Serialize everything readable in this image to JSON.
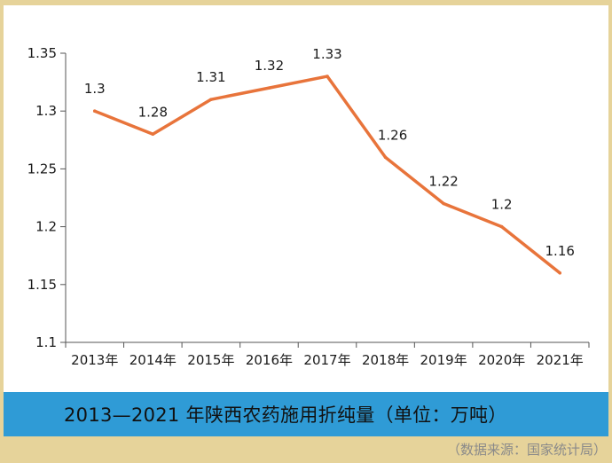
{
  "chart_data": {
    "type": "line",
    "title": "2013—2021 年陕西农药施用折纯量（单位：万吨）",
    "source": "（数据来源：国家统计局）",
    "categories": [
      "2013年",
      "2014年",
      "2015年",
      "2016年",
      "2017年",
      "2018年",
      "2019年",
      "2020年",
      "2021年"
    ],
    "series": [
      {
        "values": [
          1.3,
          1.28,
          1.31,
          1.32,
          1.33,
          1.26,
          1.22,
          1.2,
          1.16
        ],
        "labels": [
          "1.3",
          "1.28",
          "1.31",
          "1.32",
          "1.33",
          "1.26",
          "1.22",
          "1.2",
          "1.16"
        ],
        "color": "#e8743b"
      }
    ],
    "yticks": [
      "1.1",
      "1.15",
      "1.2",
      "1.25",
      "1.3",
      "1.35"
    ],
    "ylim": [
      1.1,
      1.35
    ],
    "grid": false,
    "legend": "none"
  },
  "colors": {
    "background": "#e6d39a",
    "panel": "#ffffff",
    "caption_bar": "#2f9bd6",
    "line": "#e8743b"
  }
}
